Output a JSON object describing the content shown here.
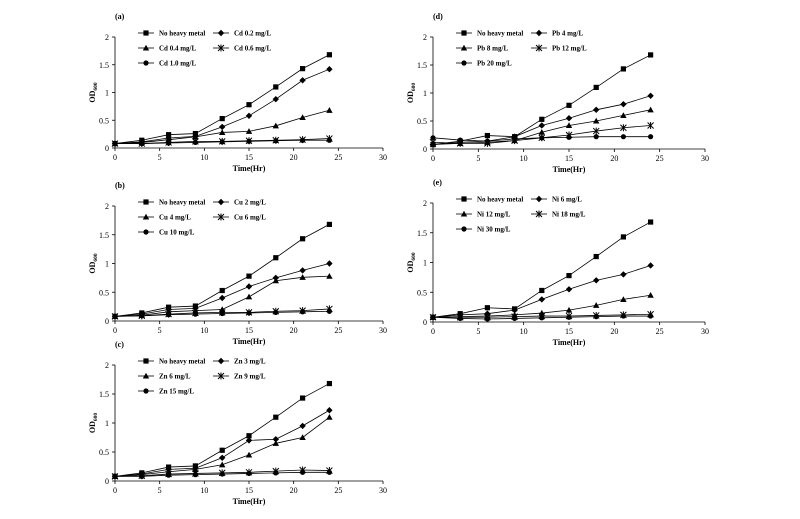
{
  "chart_data": [
    {
      "type": "line",
      "panel_label": "(a)",
      "xlabel": "Time(Hr)",
      "ylabel": "OD600",
      "ylabel_main": "OD",
      "ylabel_sub": "600",
      "xlim": [
        0,
        30
      ],
      "ylim": [
        0,
        2
      ],
      "xticks": [
        "0",
        "5",
        "10",
        "15",
        "20",
        "25",
        "30"
      ],
      "yticks": [
        "0",
        "0.5",
        "1",
        "1.5",
        "2"
      ],
      "x": [
        0,
        3,
        6,
        9,
        12,
        15,
        18,
        21,
        24
      ],
      "series": [
        {
          "name": "No heavy metal",
          "marker": "square",
          "values": [
            0.08,
            0.14,
            0.24,
            0.26,
            0.53,
            0.78,
            1.1,
            1.43,
            1.68
          ]
        },
        {
          "name": "Cd 0.2 mg/L",
          "marker": "diamond",
          "values": [
            0.08,
            0.11,
            0.18,
            0.21,
            0.38,
            0.58,
            0.88,
            1.22,
            1.42
          ]
        },
        {
          "name": "Cd 0.4 mg/L",
          "marker": "triangle",
          "values": [
            0.08,
            0.1,
            0.15,
            0.2,
            0.28,
            0.3,
            0.4,
            0.55,
            0.68
          ]
        },
        {
          "name": "Cd 0.6 mg/L",
          "marker": "cross",
          "values": [
            0.08,
            0.08,
            0.1,
            0.12,
            0.12,
            0.13,
            0.14,
            0.15,
            0.17
          ]
        },
        {
          "name": "Cd 1.0 mg/L",
          "marker": "circle",
          "values": [
            0.08,
            0.08,
            0.09,
            0.1,
            0.11,
            0.12,
            0.13,
            0.14,
            0.14
          ]
        }
      ]
    },
    {
      "type": "line",
      "panel_label": "(b)",
      "xlabel": "Time(Hr)",
      "ylabel": "OD600",
      "ylabel_main": "OD",
      "ylabel_sub": "600",
      "xlim": [
        0,
        30
      ],
      "ylim": [
        0,
        2
      ],
      "xticks": [
        "0",
        "5",
        "10",
        "15",
        "20",
        "25",
        "30"
      ],
      "yticks": [
        "0",
        "0.5",
        "1",
        "1.5",
        "2"
      ],
      "x": [
        0,
        3,
        6,
        9,
        12,
        15,
        18,
        21,
        24
      ],
      "series": [
        {
          "name": "No heavy metal",
          "marker": "square",
          "values": [
            0.08,
            0.14,
            0.24,
            0.26,
            0.53,
            0.78,
            1.1,
            1.43,
            1.68
          ]
        },
        {
          "name": "Cu 2 mg/L",
          "marker": "diamond",
          "values": [
            0.08,
            0.12,
            0.2,
            0.22,
            0.4,
            0.6,
            0.75,
            0.88,
            1.0
          ]
        },
        {
          "name": "Cu 4 mg/L",
          "marker": "triangle",
          "values": [
            0.08,
            0.1,
            0.16,
            0.18,
            0.2,
            0.42,
            0.7,
            0.76,
            0.78
          ]
        },
        {
          "name": "Cu 6 mg/L",
          "marker": "cross",
          "values": [
            0.08,
            0.09,
            0.12,
            0.14,
            0.15,
            0.15,
            0.17,
            0.18,
            0.21
          ]
        },
        {
          "name": "Cu 10 mg/L",
          "marker": "circle",
          "values": [
            0.08,
            0.09,
            0.11,
            0.12,
            0.13,
            0.14,
            0.15,
            0.16,
            0.17
          ]
        }
      ]
    },
    {
      "type": "line",
      "panel_label": "(c)",
      "xlabel": "Time(Hr)",
      "ylabel": "OD600",
      "ylabel_main": "OD",
      "ylabel_sub": "600",
      "xlim": [
        0,
        30
      ],
      "ylim": [
        0,
        2
      ],
      "xticks": [
        "0",
        "5",
        "10",
        "15",
        "20",
        "25",
        "30"
      ],
      "yticks": [
        "0",
        "0.5",
        "1",
        "1.5",
        "2"
      ],
      "x": [
        0,
        3,
        6,
        9,
        12,
        15,
        18,
        21,
        24
      ],
      "series": [
        {
          "name": "No heavy metal",
          "marker": "square",
          "values": [
            0.08,
            0.14,
            0.24,
            0.26,
            0.53,
            0.78,
            1.1,
            1.43,
            1.68
          ]
        },
        {
          "name": "Zn 3 mg/L",
          "marker": "diamond",
          "values": [
            0.08,
            0.12,
            0.2,
            0.22,
            0.4,
            0.7,
            0.72,
            0.95,
            1.22
          ]
        },
        {
          "name": "Zn 6 mg/L",
          "marker": "triangle",
          "values": [
            0.08,
            0.11,
            0.16,
            0.2,
            0.28,
            0.45,
            0.65,
            0.75,
            1.1
          ]
        },
        {
          "name": "Zn 9 mg/L",
          "marker": "cross",
          "values": [
            0.08,
            0.09,
            0.12,
            0.13,
            0.14,
            0.15,
            0.17,
            0.19,
            0.18
          ]
        },
        {
          "name": "Zn 15 mg/L",
          "marker": "circle",
          "values": [
            0.08,
            0.08,
            0.1,
            0.11,
            0.12,
            0.13,
            0.14,
            0.15,
            0.15
          ]
        }
      ]
    },
    {
      "type": "line",
      "panel_label": "(d)",
      "xlabel": "Time(Hr)",
      "ylabel": "OD600",
      "ylabel_main": "OD",
      "ylabel_sub": "600",
      "xlim": [
        0,
        30
      ],
      "ylim": [
        0,
        2
      ],
      "xticks": [
        "0",
        "5",
        "10",
        "15",
        "20",
        "25",
        "30"
      ],
      "yticks": [
        "0",
        "0.5",
        "1",
        "1.5",
        "2"
      ],
      "x": [
        0,
        3,
        6,
        9,
        12,
        15,
        18,
        21,
        24
      ],
      "series": [
        {
          "name": "No heavy metal",
          "marker": "square",
          "values": [
            0.08,
            0.14,
            0.24,
            0.22,
            0.53,
            0.78,
            1.1,
            1.43,
            1.68
          ]
        },
        {
          "name": "Pb 4 mg/L",
          "marker": "diamond",
          "values": [
            0.08,
            0.12,
            0.14,
            0.22,
            0.42,
            0.55,
            0.7,
            0.8,
            0.95
          ]
        },
        {
          "name": "Pb 8 mg/L",
          "marker": "triangle",
          "values": [
            0.08,
            0.1,
            0.12,
            0.15,
            0.3,
            0.42,
            0.5,
            0.6,
            0.7
          ]
        },
        {
          "name": "Pb 12 mg/L",
          "marker": "cross",
          "values": [
            0.12,
            0.1,
            0.1,
            0.15,
            0.2,
            0.25,
            0.32,
            0.38,
            0.42
          ]
        },
        {
          "name": "Pb 20 mg/L",
          "marker": "circle",
          "values": [
            0.2,
            0.16,
            0.14,
            0.18,
            0.2,
            0.21,
            0.22,
            0.22,
            0.22
          ]
        }
      ]
    },
    {
      "type": "line",
      "panel_label": "(e)",
      "xlabel": "Time(Hr)",
      "ylabel": "OD600",
      "ylabel_main": "OD",
      "ylabel_sub": "600",
      "xlim": [
        0,
        30
      ],
      "ylim": [
        0,
        2
      ],
      "xticks": [
        "0",
        "5",
        "10",
        "15",
        "20",
        "25",
        "30"
      ],
      "yticks": [
        "0",
        "0.5",
        "1",
        "1.5",
        "2"
      ],
      "x": [
        0,
        3,
        6,
        9,
        12,
        15,
        18,
        21,
        24
      ],
      "series": [
        {
          "name": "No heavy metal",
          "marker": "square",
          "values": [
            0.08,
            0.14,
            0.24,
            0.22,
            0.53,
            0.78,
            1.1,
            1.43,
            1.68
          ]
        },
        {
          "name": "Ni 6 mg/L",
          "marker": "diamond",
          "values": [
            0.08,
            0.12,
            0.14,
            0.2,
            0.38,
            0.55,
            0.7,
            0.8,
            0.95
          ]
        },
        {
          "name": "Ni 12 mg/L",
          "marker": "triangle",
          "values": [
            0.08,
            0.09,
            0.1,
            0.12,
            0.15,
            0.2,
            0.28,
            0.38,
            0.45
          ]
        },
        {
          "name": "Ni 18 mg/L",
          "marker": "cross",
          "values": [
            0.08,
            0.08,
            0.08,
            0.09,
            0.1,
            0.1,
            0.11,
            0.12,
            0.13
          ]
        },
        {
          "name": "Ni 30 mg/L",
          "marker": "circle",
          "values": [
            0.08,
            0.06,
            0.05,
            0.06,
            0.07,
            0.08,
            0.09,
            0.1,
            0.1
          ]
        }
      ]
    }
  ]
}
